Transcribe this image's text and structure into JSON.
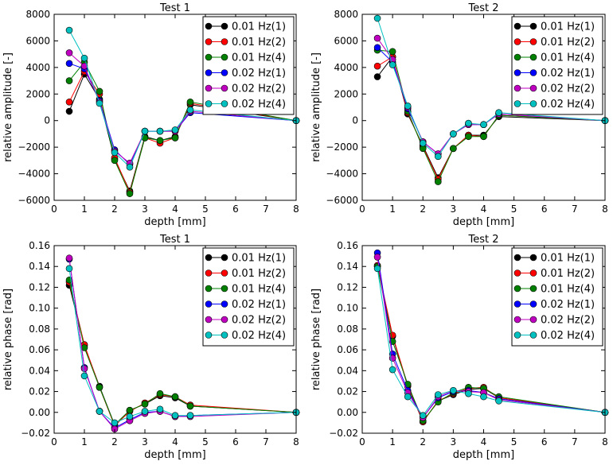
{
  "series_colors": [
    "#000000",
    "#ff0000",
    "#008000",
    "#0000ff",
    "#c000c0",
    "#00c0c0"
  ],
  "chart_data": [
    {
      "type": "line",
      "title": "Test 1",
      "xlabel": "depth [mm]",
      "ylabel": "relative amplitude [-]",
      "xlim": [
        0,
        8
      ],
      "ylim": [
        -6000,
        8000
      ],
      "xticks": [
        0,
        1,
        2,
        3,
        4,
        5,
        6,
        7,
        8
      ],
      "yticks": [
        -6000,
        -4000,
        -2000,
        0,
        2000,
        4000,
        6000,
        8000
      ],
      "ytick_labels": [
        "−6000",
        "−4000",
        "−2000",
        "0",
        "2000",
        "4000",
        "6000",
        "8000"
      ],
      "grid": false,
      "legend_position": "top-right",
      "x": [
        0.5,
        1,
        1.5,
        2,
        2.5,
        3,
        3.5,
        4,
        4.5,
        8
      ],
      "series": [
        {
          "name": "0.01 Hz(1)",
          "values": [
            700,
            3500,
            1600,
            -2900,
            -5300,
            -1200,
            -1500,
            -1200,
            1200,
            0
          ]
        },
        {
          "name": "0.01 Hz(2)",
          "values": [
            1400,
            3700,
            2000,
            -2800,
            -5400,
            -1300,
            -1700,
            -1300,
            1300,
            0
          ]
        },
        {
          "name": "0.01 Hz(4)",
          "values": [
            3000,
            4400,
            2200,
            -3000,
            -5500,
            -1300,
            -1500,
            -1300,
            1400,
            0
          ]
        },
        {
          "name": "0.02 Hz(1)",
          "values": [
            4300,
            3900,
            1500,
            -2200,
            -3300,
            -800,
            -800,
            -800,
            600,
            0
          ]
        },
        {
          "name": "0.02 Hz(2)",
          "values": [
            5100,
            4100,
            1400,
            -2300,
            -3200,
            -800,
            -800,
            -800,
            700,
            0
          ]
        },
        {
          "name": "0.02 Hz(4)",
          "values": [
            6800,
            4700,
            1300,
            -2400,
            -3500,
            -800,
            -800,
            -700,
            800,
            0
          ]
        }
      ]
    },
    {
      "type": "line",
      "title": "Test 2",
      "xlabel": "depth [mm]",
      "ylabel": "relative amplitude [-]",
      "xlim": [
        0,
        8
      ],
      "ylim": [
        -6000,
        8000
      ],
      "xticks": [
        0,
        1,
        2,
        3,
        4,
        5,
        6,
        7,
        8
      ],
      "yticks": [
        -6000,
        -4000,
        -2000,
        0,
        2000,
        4000,
        6000,
        8000
      ],
      "ytick_labels": [
        "−6000",
        "−4000",
        "−2000",
        "0",
        "2000",
        "4000",
        "6000",
        "8000"
      ],
      "grid": false,
      "legend_position": "top-right",
      "x": [
        0.5,
        1,
        1.5,
        2,
        2.5,
        3,
        3.5,
        4,
        4.5,
        8
      ],
      "series": [
        {
          "name": "0.01 Hz(1)",
          "values": [
            3300,
            4800,
            500,
            -1900,
            -4300,
            -2100,
            -1100,
            -1100,
            300,
            0
          ]
        },
        {
          "name": "0.01 Hz(2)",
          "values": [
            4100,
            4800,
            600,
            -2000,
            -4400,
            -2100,
            -1100,
            -1200,
            400,
            0
          ]
        },
        {
          "name": "0.01 Hz(4)",
          "values": [
            5300,
            5200,
            700,
            -2100,
            -4600,
            -2100,
            -1200,
            -1200,
            400,
            0
          ]
        },
        {
          "name": "0.02 Hz(1)",
          "values": [
            5500,
            4400,
            900,
            -1600,
            -2500,
            -1000,
            -300,
            -300,
            500,
            0
          ]
        },
        {
          "name": "0.02 Hz(2)",
          "values": [
            6200,
            4600,
            1000,
            -1600,
            -2500,
            -1000,
            -300,
            -300,
            500,
            0
          ]
        },
        {
          "name": "0.02 Hz(4)",
          "values": [
            7700,
            4200,
            1100,
            -1700,
            -2700,
            -1000,
            -200,
            -300,
            600,
            0
          ]
        }
      ]
    },
    {
      "type": "line",
      "title": "Test 1",
      "xlabel": "depth [mm]",
      "ylabel": "relative phase [rad]",
      "xlim": [
        0,
        8
      ],
      "ylim": [
        -0.02,
        0.16
      ],
      "xticks": [
        0,
        1,
        2,
        3,
        4,
        5,
        6,
        7,
        8
      ],
      "yticks": [
        -0.02,
        0,
        0.02,
        0.04,
        0.06,
        0.08,
        0.1,
        0.12,
        0.14,
        0.16
      ],
      "ytick_labels": [
        "−0.02",
        "0.00",
        "0.02",
        "0.04",
        "0.06",
        "0.08",
        "0.10",
        "0.12",
        "0.14",
        "0.16"
      ],
      "grid": false,
      "legend_position": "top-right",
      "x": [
        0.5,
        1,
        1.5,
        2,
        2.5,
        3,
        3.5,
        4,
        4.5,
        8
      ],
      "series": [
        {
          "name": "0.01 Hz(1)",
          "values": [
            0.122,
            0.064,
            0.025,
            -0.012,
            0.002,
            0.008,
            0.016,
            0.014,
            0.006,
            0
          ],
          "_": null
        },
        {
          "name": "0.01 Hz(2)",
          "values": [
            0.125,
            0.065,
            0.024,
            -0.013,
            0.001,
            0.009,
            0.017,
            0.015,
            0.007,
            0
          ]
        },
        {
          "name": "0.01 Hz(4)",
          "values": [
            0.127,
            0.062,
            0.024,
            -0.012,
            0.002,
            0.008,
            0.018,
            0.015,
            0.006,
            0
          ]
        },
        {
          "name": "0.02 Hz(1)",
          "values": [
            0.147,
            0.043,
            0.001,
            -0.015,
            -0.007,
            0.0,
            0.001,
            -0.004,
            -0.003,
            0
          ]
        },
        {
          "name": "0.02 Hz(2)",
          "values": [
            0.148,
            0.042,
            0.001,
            -0.016,
            -0.008,
            -0.001,
            0.001,
            -0.004,
            -0.004,
            0
          ]
        },
        {
          "name": "0.02 Hz(4)",
          "values": [
            0.138,
            0.035,
            0.001,
            -0.01,
            -0.004,
            0.001,
            0.003,
            -0.003,
            -0.003,
            0
          ]
        }
      ]
    },
    {
      "type": "line",
      "title": "Test 2",
      "xlabel": "depth [mm]",
      "ylabel": "relative phase [rad]",
      "xlim": [
        0,
        8
      ],
      "ylim": [
        -0.02,
        0.16
      ],
      "xticks": [
        0,
        1,
        2,
        3,
        4,
        5,
        6,
        7,
        8
      ],
      "yticks": [
        -0.02,
        0,
        0.02,
        0.04,
        0.06,
        0.08,
        0.1,
        0.12,
        0.14,
        0.16
      ],
      "ytick_labels": [
        "−0.02",
        "0.00",
        "0.02",
        "0.04",
        "0.06",
        "0.08",
        "0.10",
        "0.12",
        "0.14",
        "0.16"
      ],
      "grid": false,
      "legend_position": "top-right",
      "x": [
        0.5,
        1,
        1.5,
        2,
        2.5,
        3,
        3.5,
        4,
        4.5,
        8
      ],
      "series": [
        {
          "name": "0.01 Hz(1)",
          "values": [
            0.14,
            0.073,
            0.025,
            -0.009,
            0.011,
            0.017,
            0.022,
            0.023,
            0.014,
            0
          ]
        },
        {
          "name": "0.01 Hz(2)",
          "values": [
            0.141,
            0.074,
            0.026,
            -0.009,
            0.011,
            0.018,
            0.023,
            0.024,
            0.014,
            0
          ]
        },
        {
          "name": "0.01 Hz(4)",
          "values": [
            0.14,
            0.068,
            0.027,
            -0.008,
            0.01,
            0.019,
            0.024,
            0.023,
            0.015,
            0
          ]
        },
        {
          "name": "0.02 Hz(1)",
          "values": [
            0.153,
            0.056,
            0.021,
            -0.005,
            0.014,
            0.02,
            0.021,
            0.019,
            0.013,
            0
          ]
        },
        {
          "name": "0.02 Hz(2)",
          "values": [
            0.149,
            0.052,
            0.019,
            -0.005,
            0.015,
            0.021,
            0.02,
            0.019,
            0.012,
            0
          ]
        },
        {
          "name": "0.02 Hz(4)",
          "values": [
            0.138,
            0.041,
            0.015,
            -0.003,
            0.017,
            0.021,
            0.018,
            0.015,
            0.011,
            0
          ]
        }
      ]
    }
  ]
}
